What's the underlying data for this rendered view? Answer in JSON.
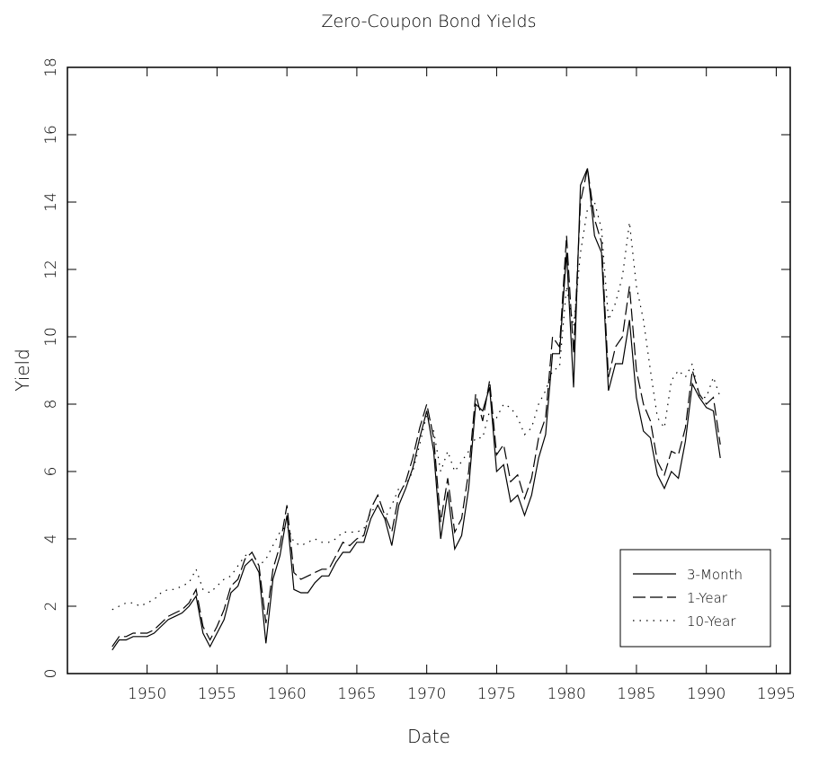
{
  "chart_data": {
    "type": "line",
    "title": "Zero-Coupon Bond Yields",
    "x_label": "Date",
    "y_label": "Yield",
    "x": [
      1947.5,
      1948,
      1948.5,
      1949,
      1949.5,
      1950,
      1950.5,
      1951,
      1951.5,
      1952,
      1952.5,
      1953,
      1953.5,
      1954,
      1954.5,
      1955,
      1955.5,
      1956,
      1956.5,
      1957,
      1957.5,
      1958,
      1958.5,
      1959,
      1959.5,
      1960,
      1960.5,
      1961,
      1961.5,
      1962,
      1962.5,
      1963,
      1963.5,
      1964,
      1964.5,
      1965,
      1965.5,
      1966,
      1966.5,
      1967,
      1967.5,
      1968,
      1968.5,
      1969,
      1969.5,
      1970,
      1970.5,
      1971,
      1971.5,
      1972,
      1972.5,
      1973,
      1973.5,
      1974,
      1974.5,
      1975,
      1975.5,
      1976,
      1976.5,
      1977,
      1977.5,
      1978,
      1978.5,
      1979,
      1979.5,
      1980,
      1980.5,
      1981,
      1981.5,
      1982,
      1982.5,
      1983,
      1983.5,
      1984,
      1984.5,
      1985,
      1985.5,
      1986,
      1986.5,
      1987,
      1987.5,
      1988,
      1988.5,
      1989,
      1989.5,
      1990,
      1990.5,
      1991
    ],
    "series": [
      {
        "name": "3-Month",
        "color": "#000000",
        "style": "solid",
        "values": [
          0.7,
          1.0,
          1.0,
          1.1,
          1.1,
          1.1,
          1.2,
          1.4,
          1.6,
          1.7,
          1.8,
          2.0,
          2.3,
          1.2,
          0.8,
          1.2,
          1.6,
          2.4,
          2.6,
          3.2,
          3.4,
          3.0,
          0.9,
          2.8,
          3.5,
          4.7,
          2.5,
          2.4,
          2.4,
          2.7,
          2.9,
          2.9,
          3.3,
          3.6,
          3.6,
          3.9,
          3.9,
          4.6,
          5.0,
          4.6,
          3.8,
          5.0,
          5.5,
          6.1,
          7.0,
          7.8,
          6.6,
          4.0,
          5.4,
          3.7,
          4.1,
          5.5,
          8.0,
          7.8,
          8.5,
          6.0,
          6.2,
          5.1,
          5.3,
          4.7,
          5.3,
          6.4,
          7.1,
          9.5,
          9.5,
          12.5,
          8.5,
          14.5,
          15.0,
          13.0,
          12.5,
          8.4,
          9.2,
          9.2,
          10.5,
          8.2,
          7.2,
          7.0,
          5.9,
          5.5,
          6.0,
          5.8,
          6.9,
          8.6,
          8.2,
          7.9,
          7.8,
          6.4
        ]
      },
      {
        "name": "1-Year",
        "color": "#000000",
        "style": "dashed",
        "values": [
          0.8,
          1.1,
          1.1,
          1.2,
          1.2,
          1.2,
          1.3,
          1.5,
          1.7,
          1.8,
          1.9,
          2.1,
          2.5,
          1.4,
          1.0,
          1.4,
          1.9,
          2.6,
          2.8,
          3.4,
          3.6,
          3.2,
          1.5,
          3.1,
          3.8,
          5.0,
          3.0,
          2.8,
          2.9,
          3.0,
          3.1,
          3.1,
          3.5,
          3.9,
          3.8,
          4.0,
          4.1,
          4.9,
          5.3,
          4.7,
          4.2,
          5.3,
          5.7,
          6.4,
          7.3,
          8.0,
          7.0,
          4.5,
          5.8,
          4.2,
          4.6,
          6.0,
          8.3,
          7.5,
          8.7,
          6.5,
          6.8,
          5.7,
          5.9,
          5.2,
          5.8,
          7.0,
          7.6,
          10.0,
          9.7,
          13.0,
          9.5,
          14.0,
          15.0,
          13.5,
          12.8,
          8.8,
          9.7,
          10.0,
          11.5,
          9.0,
          8.0,
          7.5,
          6.3,
          5.9,
          6.6,
          6.5,
          7.3,
          9.0,
          8.3,
          8.0,
          8.2,
          6.8
        ]
      },
      {
        "name": "10-Year",
        "color": "#000000",
        "style": "dotted",
        "values": [
          1.9,
          2.0,
          2.1,
          2.1,
          2.0,
          2.1,
          2.2,
          2.4,
          2.5,
          2.5,
          2.6,
          2.7,
          3.1,
          2.5,
          2.4,
          2.6,
          2.8,
          2.9,
          3.2,
          3.5,
          3.6,
          3.2,
          3.4,
          3.8,
          4.2,
          4.4,
          3.9,
          3.8,
          3.9,
          4.0,
          3.9,
          3.9,
          4.0,
          4.2,
          4.2,
          4.2,
          4.3,
          4.8,
          5.0,
          4.6,
          5.0,
          5.5,
          5.6,
          6.0,
          6.8,
          7.7,
          7.2,
          6.0,
          6.6,
          6.0,
          6.3,
          6.6,
          7.0,
          7.0,
          7.8,
          7.6,
          8.0,
          7.9,
          7.6,
          7.1,
          7.3,
          8.0,
          8.4,
          9.0,
          9.1,
          11.5,
          10.3,
          12.5,
          13.8,
          14.0,
          13.2,
          10.5,
          11.0,
          11.8,
          13.4,
          11.5,
          10.5,
          9.0,
          7.6,
          7.3,
          8.7,
          9.0,
          8.8,
          9.2,
          8.2,
          8.2,
          8.8,
          8.2
        ]
      }
    ],
    "xlim": [
      1944.3,
      1996
    ],
    "xticks": [
      1950,
      1955,
      1960,
      1965,
      1970,
      1975,
      1980,
      1985,
      1990,
      1995
    ],
    "ylim": [
      0,
      18
    ],
    "yticks": [
      0,
      2,
      4,
      6,
      8,
      10,
      12,
      14,
      16,
      18
    ],
    "legend": "lower right"
  }
}
